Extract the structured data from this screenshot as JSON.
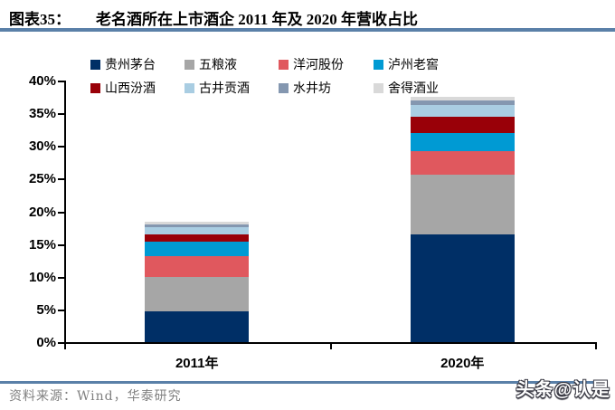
{
  "header": {
    "figure_label": "图表35：",
    "title": "老名酒所在上市酒企 2011 年及 2020 年营收占比"
  },
  "footer": {
    "source": "资料来源：Wind，华泰研究",
    "watermark": "头条@认是"
  },
  "colors": {
    "accent_rule_blue": "#5a80a8",
    "axis_black": "#000000",
    "source_gray": "#808080"
  },
  "chart_data": {
    "type": "bar",
    "stacked": true,
    "title": "老名酒所在上市酒企 2011 年及 2020 年营收占比",
    "categories": [
      "2011年",
      "2020年"
    ],
    "series": [
      {
        "name": "贵州茅台",
        "color": "#002f66",
        "values": [
          4.7,
          16.5
        ]
      },
      {
        "name": "五粮液",
        "color": "#a6a6a6",
        "values": [
          5.2,
          9.1
        ]
      },
      {
        "name": "洋河股份",
        "color": "#e0585e",
        "values": [
          3.3,
          3.6
        ]
      },
      {
        "name": "泸州老窖",
        "color": "#009ad3",
        "values": [
          2.2,
          2.8
        ]
      },
      {
        "name": "山西汾酒",
        "color": "#990008",
        "values": [
          1.1,
          2.5
        ]
      },
      {
        "name": "古井贡酒",
        "color": "#a9cde2",
        "values": [
          1.1,
          1.7
        ]
      },
      {
        "name": "水井坊",
        "color": "#8497b0",
        "values": [
          0.4,
          0.8
        ]
      },
      {
        "name": "舍得酒业",
        "color": "#d9d9d9",
        "values": [
          0.4,
          0.5
        ]
      }
    ],
    "xlabel": "",
    "ylabel": "",
    "ylim": [
      0,
      40
    ],
    "ytick_step": 5,
    "ytick_labels": [
      "0%",
      "5%",
      "10%",
      "15%",
      "20%",
      "25%",
      "30%",
      "35%",
      "40%"
    ],
    "grid": false,
    "legend_position": "top",
    "legend_columns": 4
  }
}
